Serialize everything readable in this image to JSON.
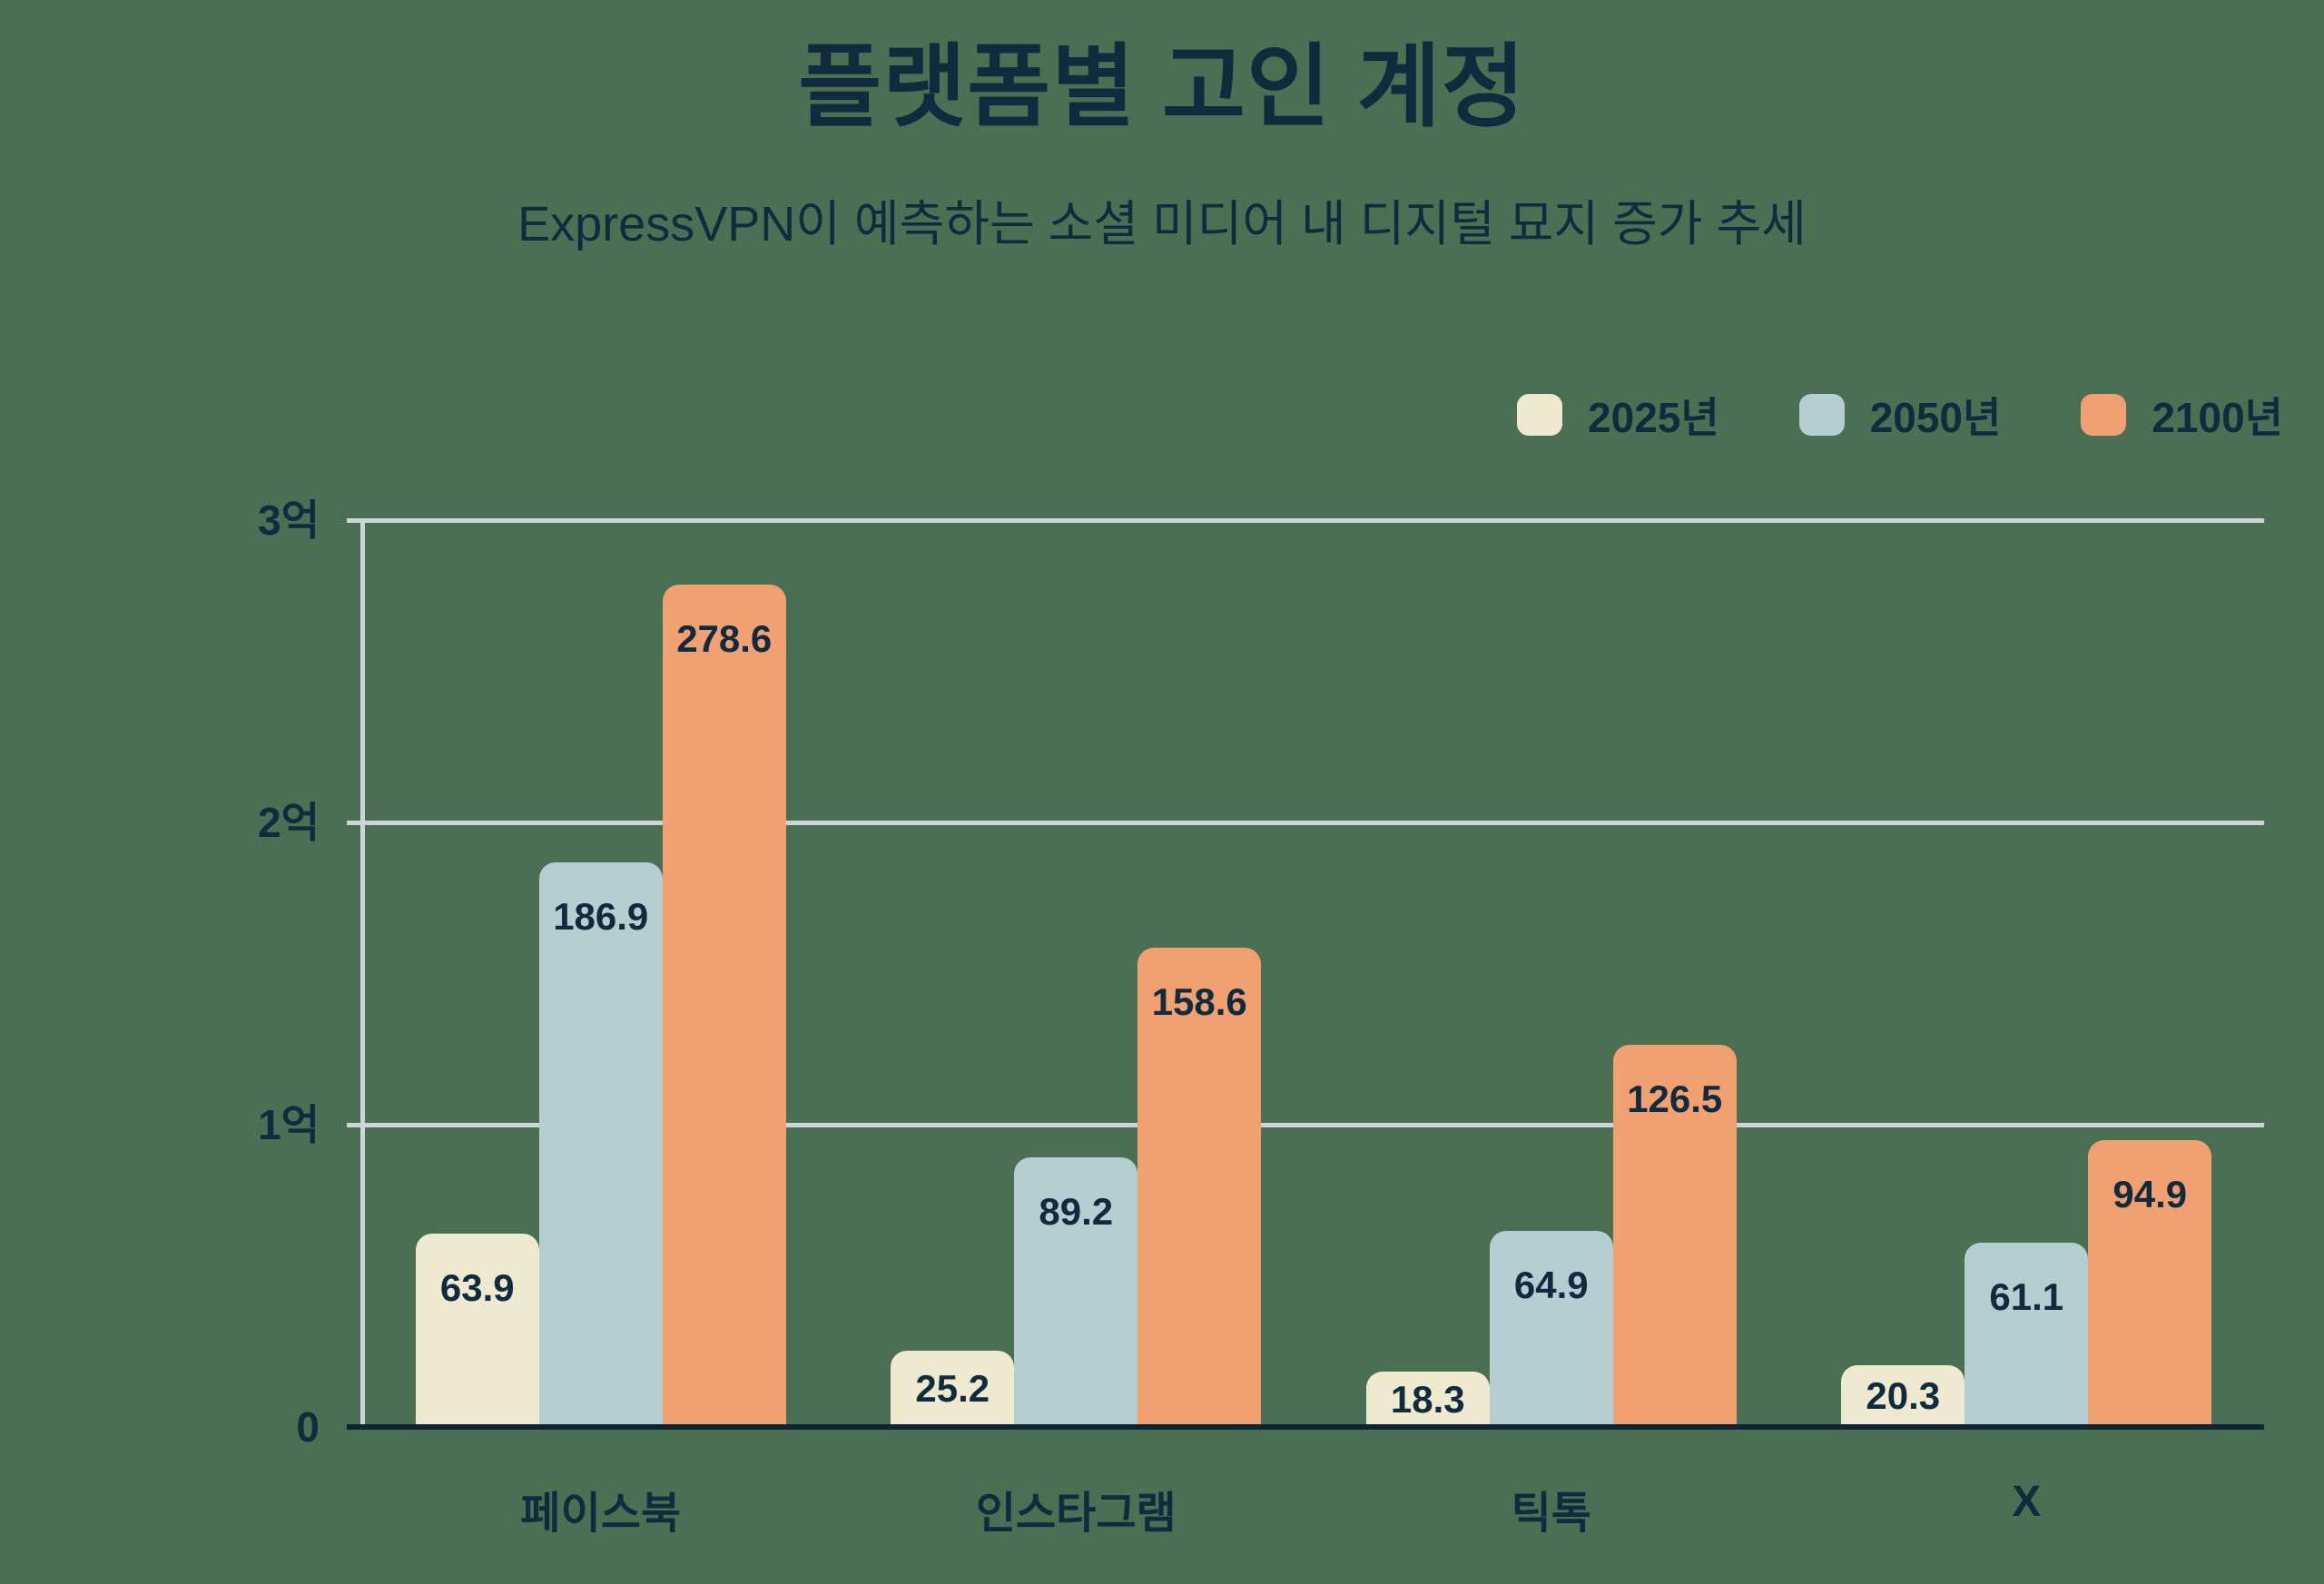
{
  "page": {
    "background_color": "#4a6f52",
    "text_color": "#112b3e",
    "gridline_color": "#cdd4da",
    "axis_color": "#0f2336"
  },
  "header": {
    "title": "플랫폼별 고인 계정",
    "subtitle": "ExpressVPN이 예측하는 소셜 미디어 내 디지털 묘지 증가 추세"
  },
  "chart_data": {
    "type": "bar",
    "title": "플랫폼별 고인 계정",
    "subtitle": "ExpressVPN이 예측하는 소셜 미디어 내 디지털 묘지 증가 추세",
    "categories": [
      "페이스북",
      "인스타그램",
      "틱톡",
      "X"
    ],
    "series": [
      {
        "name": "2025년",
        "color": "#efe9cf",
        "values": [
          63.9,
          25.2,
          18.3,
          20.3
        ]
      },
      {
        "name": "2050년",
        "color": "#b4ced1",
        "values": [
          186.9,
          89.2,
          64.9,
          61.1
        ]
      },
      {
        "name": "2100년",
        "color": "#f1a072",
        "values": [
          278.6,
          158.6,
          126.5,
          94.9
        ]
      }
    ],
    "ylim": [
      0,
      300
    ],
    "ytick_values": [
      0,
      100,
      200,
      300
    ],
    "ytick_labels": [
      "0",
      "1억",
      "2억",
      "3억"
    ],
    "value_labels_shown": true,
    "grid": true,
    "legend_position": "top-right"
  }
}
